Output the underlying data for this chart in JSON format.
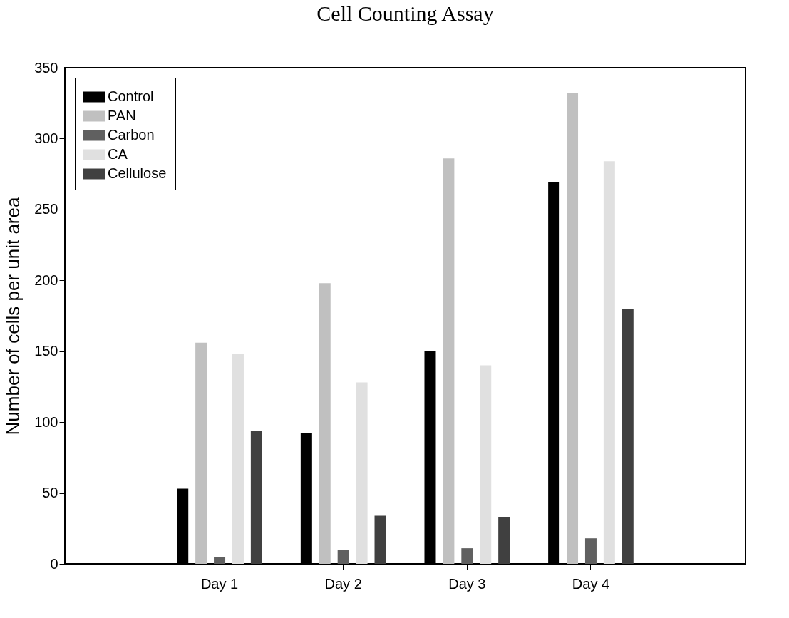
{
  "chart_data": {
    "type": "bar",
    "title": "Cell Counting Assay",
    "ylabel": "Number of cells per unit area",
    "categories": [
      "Day 1",
      "Day 2",
      "Day 3",
      "Day 4"
    ],
    "series": [
      {
        "name": "Control",
        "color": "#000000",
        "values": [
          53,
          92,
          150,
          269
        ]
      },
      {
        "name": "PAN",
        "color": "#c0c0c0",
        "values": [
          156,
          198,
          286,
          332
        ]
      },
      {
        "name": "Carbon",
        "color": "#606060",
        "values": [
          5,
          10,
          11,
          18
        ]
      },
      {
        "name": "CA",
        "color": "#e0e0e0",
        "values": [
          148,
          128,
          140,
          284
        ]
      },
      {
        "name": "Cellulose",
        "color": "#404040",
        "values": [
          94,
          34,
          33,
          180
        ]
      }
    ],
    "ylim": [
      0,
      350
    ],
    "yticks": [
      0,
      50,
      100,
      150,
      200,
      250,
      300,
      350
    ],
    "grid": false,
    "legend": "top left"
  }
}
